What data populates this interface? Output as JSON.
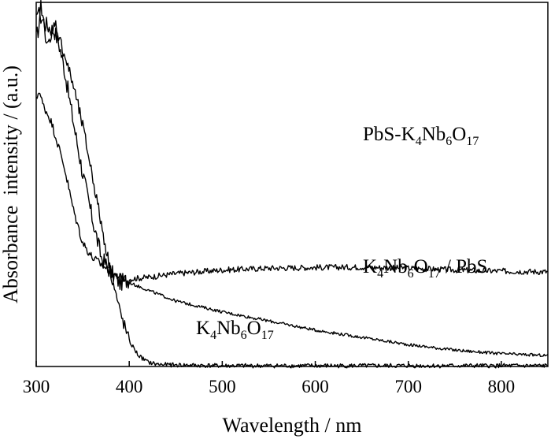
{
  "chart_data": {
    "type": "line",
    "title": "",
    "xlabel": "Wavelength / nm",
    "ylabel": "Absorbance  intensity / (a.u.)",
    "xlim": [
      300,
      850
    ],
    "ylim": [
      0,
      1
    ],
    "x_ticks": [
      "300",
      "400",
      "500",
      "600",
      "700",
      "800"
    ],
    "y_ticks": [],
    "grid": false,
    "legend": "none",
    "series": [
      {
        "name": "PbS-K4Nb6O17",
        "label_parts": [
          {
            "t": "PbS-K",
            "sub": false
          },
          {
            "t": "4",
            "sub": true
          },
          {
            "t": "Nb",
            "sub": false
          },
          {
            "t": "6",
            "sub": true
          },
          {
            "t": "O",
            "sub": false
          },
          {
            "t": "17",
            "sub": true
          }
        ],
        "noise": 0.008,
        "x": [
          300,
          305,
          310,
          315,
          320,
          325,
          330,
          340,
          350,
          360,
          370,
          380,
          390,
          400,
          420,
          450,
          500,
          550,
          600,
          650,
          700,
          750,
          800,
          850
        ],
        "y": [
          0.9,
          0.96,
          0.94,
          0.93,
          0.92,
          0.88,
          0.82,
          0.67,
          0.53,
          0.41,
          0.3,
          0.26,
          0.23,
          0.24,
          0.245,
          0.255,
          0.265,
          0.27,
          0.272,
          0.273,
          0.27,
          0.265,
          0.262,
          0.26
        ]
      },
      {
        "name": "K4Nb6O17 / PbS",
        "label_parts": [
          {
            "t": "K",
            "sub": false
          },
          {
            "t": "4",
            "sub": true
          },
          {
            "t": "Nb",
            "sub": false
          },
          {
            "t": "6",
            "sub": true
          },
          {
            "t": "O",
            "sub": false
          },
          {
            "t": "17",
            "sub": true
          },
          {
            "t": " / PbS",
            "sub": false
          }
        ],
        "noise": 0.004,
        "x": [
          300,
          303,
          307,
          315,
          320,
          330,
          340,
          350,
          360,
          370,
          380,
          400,
          450,
          500,
          550,
          600,
          650,
          700,
          750,
          800,
          850
        ],
        "y": [
          0.73,
          0.76,
          0.72,
          0.68,
          0.64,
          0.55,
          0.43,
          0.34,
          0.3,
          0.28,
          0.26,
          0.23,
          0.18,
          0.15,
          0.125,
          0.1,
          0.08,
          0.06,
          0.045,
          0.035,
          0.03
        ]
      },
      {
        "name": "K4Nb6O17",
        "label_parts": [
          {
            "t": "K",
            "sub": false
          },
          {
            "t": "4",
            "sub": true
          },
          {
            "t": "Nb",
            "sub": false
          },
          {
            "t": "6",
            "sub": true
          },
          {
            "t": "O",
            "sub": false
          },
          {
            "t": "17",
            "sub": true
          }
        ],
        "noise": 0.006,
        "x": [
          300,
          305,
          310,
          315,
          320,
          325,
          330,
          340,
          350,
          360,
          370,
          380,
          390,
          400,
          410,
          420,
          430,
          450,
          500,
          600,
          700,
          850
        ],
        "y": [
          0.95,
          0.99,
          0.91,
          0.88,
          0.95,
          0.9,
          0.86,
          0.77,
          0.66,
          0.53,
          0.39,
          0.26,
          0.15,
          0.07,
          0.03,
          0.012,
          0.006,
          0.004,
          0.002,
          0.002,
          0.002,
          0.002
        ]
      }
    ]
  }
}
